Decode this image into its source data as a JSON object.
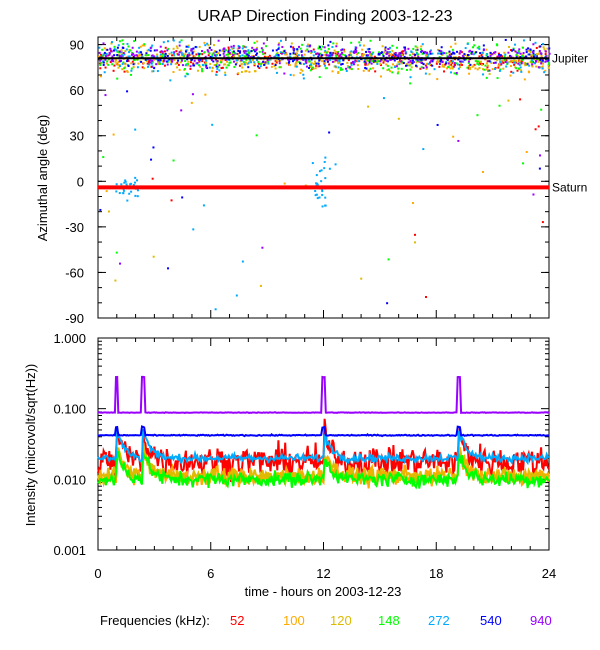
{
  "chart_data": [
    {
      "type": "scatter",
      "panel": "top",
      "title": "URAP Direction Finding  2003-12-23",
      "ylabel": "Azimuthal angle (deg)",
      "xlim": [
        0,
        24
      ],
      "ylim": [
        -90,
        95
      ],
      "yticks": [
        90,
        60,
        30,
        0,
        -30,
        -60,
        -90
      ],
      "ytick_labels": [
        "90",
        "60",
        "30",
        "0",
        "-30",
        "-60",
        "-90"
      ],
      "reference_lines": [
        {
          "name": "Jupiter",
          "value": 81,
          "color": "#000000"
        },
        {
          "name": "Saturn",
          "value": -4,
          "color": "#ff0000"
        }
      ],
      "series": [
        {
          "name": "52",
          "color": "#ff0000",
          "center": 81,
          "spread": 6
        },
        {
          "name": "100",
          "color": "#ffaa00",
          "center": 80,
          "spread": 8
        },
        {
          "name": "120",
          "color": "#ddbb00",
          "center": 81,
          "spread": 7
        },
        {
          "name": "148",
          "color": "#00ff00",
          "center": 82,
          "spread": 9
        },
        {
          "name": "272",
          "color": "#00aaff",
          "center": 82,
          "spread": 9
        },
        {
          "name": "540",
          "color": "#0000ff",
          "center": 83,
          "spread": 6
        },
        {
          "name": "940",
          "color": "#9900ff",
          "center": 83,
          "spread": 6
        }
      ]
    },
    {
      "type": "line",
      "panel": "bottom",
      "ylabel": "Intensity (microvolt/sqrt(Hz))",
      "xlabel": "time - hours on 2003-12-23",
      "xlim": [
        0,
        24
      ],
      "yscale": "log",
      "ylim": [
        0.001,
        1.0
      ],
      "yticks": [
        1.0,
        0.1,
        0.01,
        0.001
      ],
      "ytick_labels": [
        "1.000",
        "0.100",
        "0.010",
        "0.001"
      ],
      "xticks": [
        0,
        6,
        12,
        18,
        24
      ],
      "xtick_labels": [
        "0",
        "6",
        "12",
        "18",
        "24"
      ],
      "legend_title": "Frequencies (kHz):",
      "series": [
        {
          "name": "52",
          "color": "#ff0000",
          "baseline": 0.018,
          "noise": 0.25
        },
        {
          "name": "100",
          "color": "#ffaa00",
          "baseline": 0.011,
          "noise": 0.15
        },
        {
          "name": "120",
          "color": "#ddbb00",
          "baseline": 0.011,
          "noise": 0.12
        },
        {
          "name": "148",
          "color": "#00ff00",
          "baseline": 0.01,
          "noise": 0.12
        },
        {
          "name": "272",
          "color": "#00aaff",
          "baseline": 0.02,
          "noise": 0.06
        },
        {
          "name": "540",
          "color": "#0000ff",
          "baseline": 0.042,
          "noise": 0.01
        },
        {
          "name": "940",
          "color": "#9900ff",
          "baseline": 0.088,
          "noise": 0.005
        }
      ],
      "events_hours": [
        1.0,
        2.4,
        12.0,
        19.2
      ],
      "event_peak_940": 0.28
    }
  ]
}
